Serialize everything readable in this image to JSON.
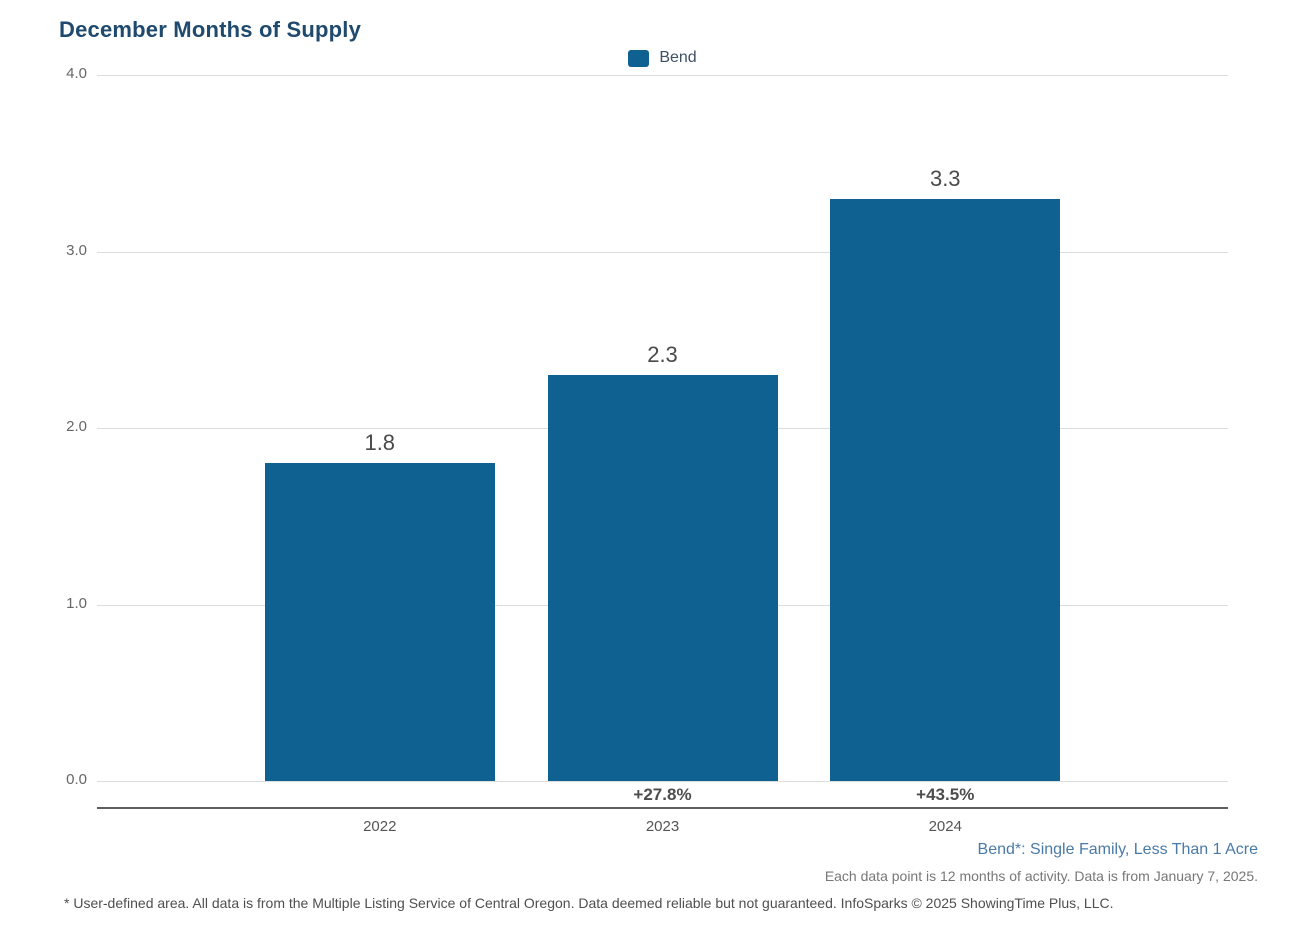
{
  "title": "December Months of Supply",
  "legend": {
    "label": "Bend",
    "swatch_color": "#0F6191"
  },
  "chart_data": {
    "type": "bar",
    "title": "December Months of Supply",
    "series_name": "Bend",
    "categories": [
      "2022",
      "2023",
      "2024"
    ],
    "values": [
      1.8,
      2.3,
      3.3
    ],
    "value_labels": [
      "1.8",
      "2.3",
      "3.3"
    ],
    "pct_change_labels": [
      "",
      "+27.8%",
      "+43.5%"
    ],
    "xlabel": "",
    "ylabel": "",
    "ylim": [
      0.0,
      4.0
    ],
    "yticks": [
      {
        "value": 4.0,
        "label": "4.0"
      },
      {
        "value": 3.0,
        "label": "3.0"
      },
      {
        "value": 2.0,
        "label": "2.0"
      },
      {
        "value": 1.0,
        "label": "1.0"
      },
      {
        "value": 0.0,
        "label": "0.0"
      }
    ],
    "grid": true,
    "legend_position": "top-center",
    "bar_color": "#0F6191"
  },
  "footnotes": {
    "segment_note": "Bend*: Single Family, Less Than 1 Acre",
    "data_note": "Each data point is 12 months of activity. Data is from January 7, 2025.",
    "disclaimer": "* User-defined area. All data is from the Multiple Listing Service of Central Oregon. Data deemed reliable but not guaranteed. InfoSparks © 2025 ShowingTime Plus, LLC."
  },
  "colors": {
    "title": "#1F4A6E",
    "bar": "#0F6191",
    "gridline": "#DDDDDD",
    "axis_line": "#5E5E5E",
    "tick_text": "#666666",
    "value_text": "#4A4A4A",
    "segment_note_text": "#4A7BA8"
  }
}
